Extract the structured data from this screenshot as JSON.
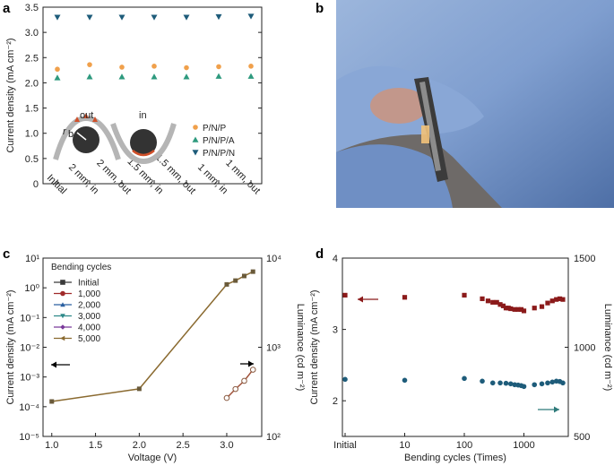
{
  "panels": {
    "a": "a",
    "b": "b",
    "c": "c",
    "d": "d"
  },
  "colors": {
    "pnp": "#F0A04B",
    "pnpa": "#2E9A7E",
    "pnpn": "#1E5C7A",
    "d_red": "#8B1A1A",
    "d_blue": "#1E5C7A"
  },
  "chart_data": [
    {
      "id": "a",
      "type": "scatter",
      "categories": [
        "Initial",
        "2 mm, in",
        "2 mm, out",
        "1.5 mm, in",
        "1.5 mm, out",
        "1 mm, in",
        "1 mm, out"
      ],
      "ylabel": "Current density (mA cm⁻²)",
      "ylim": [
        0,
        3.5
      ],
      "yticks": [
        "0",
        "0.5",
        "1.0",
        "1.5",
        "2.0",
        "2.5",
        "3.0",
        "3.5"
      ],
      "series": [
        {
          "name": "P/N/P",
          "marker": "circle",
          "values": [
            2.27,
            2.36,
            2.31,
            2.33,
            2.3,
            2.32,
            2.33
          ]
        },
        {
          "name": "P/N/P/A",
          "marker": "triangle-up",
          "values": [
            2.1,
            2.12,
            2.12,
            2.12,
            2.12,
            2.13,
            2.13
          ]
        },
        {
          "name": "P/N/P/N",
          "marker": "triangle-down",
          "values": [
            3.3,
            3.3,
            3.3,
            3.3,
            3.3,
            3.31,
            3.32
          ]
        }
      ],
      "inset": {
        "out_label": "out",
        "in_label": "in",
        "rb_label": "r",
        "rb_sub": "b"
      }
    },
    {
      "id": "c",
      "type": "line",
      "xlabel": "Voltage (V)",
      "ylabel": "Current density (mA cm⁻²)",
      "ylabel_right": "Luminance (cd m⁻²)",
      "xlim": [
        0.9,
        3.4
      ],
      "xticks": [
        "1.0",
        "1.5",
        "2.0",
        "2.5",
        "3.0"
      ],
      "yscale": "log",
      "ylim": [
        1e-05,
        10
      ],
      "yticks": [
        "10⁻⁵",
        "10⁻⁴",
        "10⁻³",
        "10⁻²",
        "10⁻¹",
        "10⁰",
        "10¹"
      ],
      "y2lim": [
        100,
        10000
      ],
      "y2ticks": [
        "10²",
        "10³",
        "10⁴"
      ],
      "legend_title": "Bending cycles",
      "series": [
        {
          "name": "Initial",
          "color": "#3a3a3a",
          "marker": "square"
        },
        {
          "name": "1,000",
          "color": "#A02A2A",
          "marker": "circle"
        },
        {
          "name": "2,000",
          "color": "#2A5FA0",
          "marker": "triangle-up"
        },
        {
          "name": "3,000",
          "color": "#2E8A8A",
          "marker": "triangle-down"
        },
        {
          "name": "4,000",
          "color": "#7A3A9A",
          "marker": "diamond"
        },
        {
          "name": "5,000",
          "color": "#8A6A30",
          "marker": "triangle-left"
        }
      ],
      "current_x": [
        1.0,
        2.0,
        3.0,
        3.1,
        3.2,
        3.3
      ],
      "current_y": [
        0.00015,
        0.0004,
        1.3,
        1.75,
        2.5,
        3.5
      ],
      "luminance_x": [
        3.0,
        3.1,
        3.2,
        3.3
      ],
      "luminance_y": [
        270,
        340,
        420,
        560
      ]
    },
    {
      "id": "d",
      "type": "scatter",
      "xlabel": "Bending cycles (Times)",
      "xscale": "log",
      "xlim": [
        1,
        5000
      ],
      "xticks": [
        "Initial",
        "10",
        "100",
        "1000"
      ],
      "ylabel": "Current density (mA cm⁻²)",
      "ylim": [
        1.5,
        4
      ],
      "yticks": [
        "2",
        "3",
        "4"
      ],
      "ylabel_right": "Luminance (cd m⁻²)",
      "y2lim": [
        500,
        1500
      ],
      "y2ticks": [
        "500",
        "1000",
        "1500"
      ],
      "current_x": [
        1,
        10,
        100,
        200,
        250,
        300,
        350,
        400,
        450,
        500,
        550,
        600,
        700,
        800,
        900,
        1000,
        1500,
        2000,
        2500,
        3000,
        3500,
        4000,
        4500
      ],
      "current_y": [
        3.48,
        3.45,
        3.48,
        3.43,
        3.4,
        3.38,
        3.38,
        3.35,
        3.33,
        3.3,
        3.3,
        3.29,
        3.28,
        3.28,
        3.28,
        3.26,
        3.3,
        3.32,
        3.37,
        3.4,
        3.42,
        3.43,
        3.42
      ],
      "luminance_x": [
        1,
        10,
        100,
        200,
        300,
        400,
        500,
        600,
        700,
        800,
        900,
        1000,
        1500,
        2000,
        2500,
        3000,
        3500,
        4000,
        4500
      ],
      "luminance_y": [
        820,
        815,
        825,
        810,
        800,
        800,
        798,
        795,
        790,
        788,
        785,
        780,
        790,
        795,
        800,
        805,
        810,
        808,
        800
      ]
    }
  ]
}
